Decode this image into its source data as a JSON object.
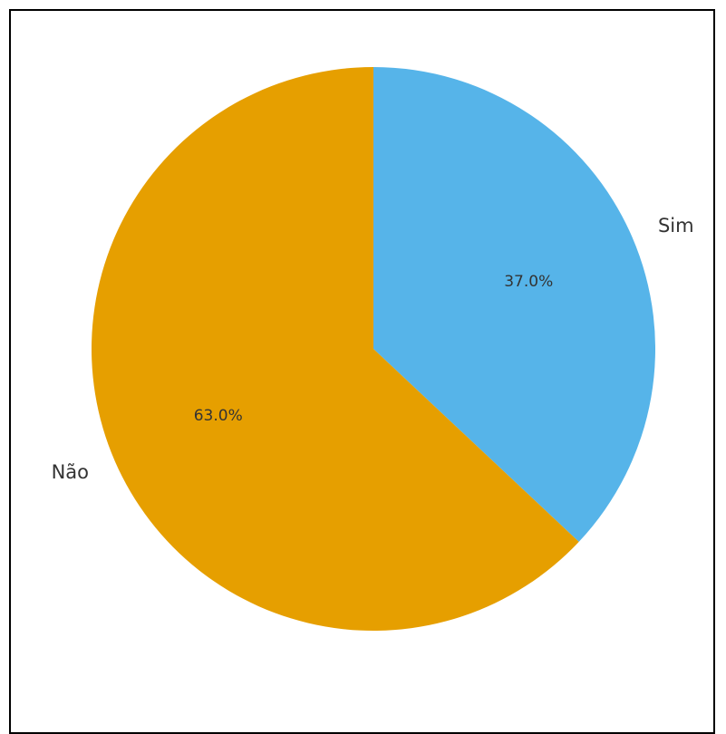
{
  "chart_data": {
    "type": "pie",
    "title": "",
    "slices": [
      {
        "label": "Sim",
        "value": 37.0,
        "value_label": "37.0%",
        "color": "#56B4E9"
      },
      {
        "label": "Não",
        "value": 63.0,
        "value_label": "63.0%",
        "color": "#E69F00"
      }
    ],
    "start": "top",
    "direction": "clockwise",
    "legend": "none"
  }
}
